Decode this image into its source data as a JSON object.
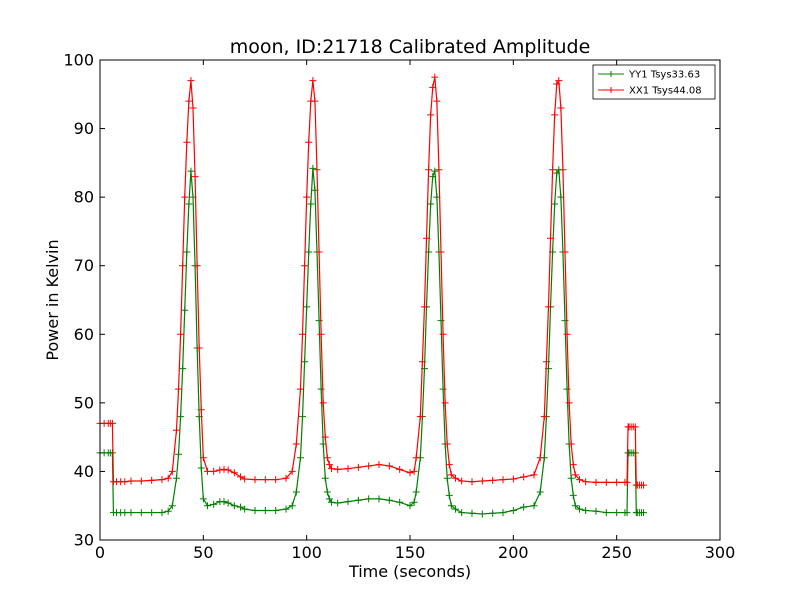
{
  "chart_data": {
    "type": "line",
    "title": "moon, ID:21718 Calibrated Amplitude",
    "xlabel": "Time (seconds)",
    "ylabel": "Power in Kelvin",
    "xlim": [
      0,
      300
    ],
    "ylim": [
      30,
      100
    ],
    "xticks": [
      "0",
      "50",
      "100",
      "150",
      "200",
      "250",
      "300"
    ],
    "yticks": [
      "30",
      "40",
      "50",
      "60",
      "70",
      "80",
      "90",
      "100"
    ],
    "grid": false,
    "legend_position": "top-right",
    "marker": "plus",
    "series": [
      {
        "name": "YY1 Tsys33.63",
        "color": "#008000",
        "x": [
          0,
          2,
          4,
          5,
          6,
          6.5,
          8,
          10,
          12,
          15,
          20,
          25,
          30,
          33,
          35,
          37,
          38,
          39,
          40,
          41,
          42,
          43,
          44,
          45,
          46,
          47,
          48,
          49,
          50,
          52,
          55,
          58,
          60,
          62,
          65,
          68,
          70,
          75,
          80,
          85,
          90,
          93,
          95,
          97,
          98,
          99,
          100,
          101,
          102,
          103,
          104,
          105,
          106,
          107,
          108,
          109,
          110,
          111,
          112,
          115,
          120,
          125,
          130,
          135,
          140,
          145,
          150,
          152,
          153,
          155,
          156,
          157,
          158,
          159,
          160,
          161,
          162,
          163,
          164,
          165,
          166,
          167,
          168,
          169,
          170,
          172,
          175,
          180,
          185,
          190,
          195,
          200,
          205,
          210,
          213,
          215,
          216,
          217,
          218,
          219,
          220,
          221,
          222,
          223,
          224,
          225,
          226,
          227,
          228,
          229,
          230,
          232,
          235,
          240,
          245,
          250,
          254,
          255,
          255.5,
          256,
          257,
          258,
          259,
          259.5,
          260,
          261,
          262,
          263
        ],
        "y": [
          42.7,
          42.7,
          42.7,
          42.7,
          42.7,
          34.0,
          34.0,
          34.0,
          34.0,
          34.0,
          34.0,
          34.0,
          34.0,
          34.2,
          35.0,
          39.0,
          42.5,
          48.0,
          55.0,
          63.5,
          72.0,
          79.0,
          83.8,
          80.0,
          70.0,
          58.0,
          48.0,
          40.5,
          36.0,
          35.0,
          35.2,
          35.6,
          35.6,
          35.4,
          35.0,
          34.8,
          34.5,
          34.3,
          34.3,
          34.3,
          34.5,
          35.0,
          37.0,
          42.0,
          48.0,
          56.0,
          64.0,
          72.0,
          79.0,
          84.2,
          81.0,
          72.0,
          62.0,
          52.0,
          44.0,
          39.0,
          37.0,
          36.0,
          35.5,
          35.4,
          35.6,
          35.8,
          36.0,
          36.0,
          35.8,
          35.5,
          35.0,
          35.5,
          37.0,
          42.0,
          48.0,
          55.0,
          64.0,
          72.0,
          79.0,
          83.0,
          83.8,
          80.0,
          72.0,
          62.0,
          52.0,
          44.0,
          39.0,
          36.5,
          35.0,
          34.5,
          34.0,
          33.9,
          33.8,
          33.9,
          34.0,
          34.3,
          34.8,
          35.0,
          37.0,
          42.0,
          48.0,
          55.0,
          64.0,
          72.0,
          79.0,
          83.5,
          84.0,
          80.0,
          72.0,
          62.0,
          52.0,
          44.0,
          39.0,
          36.5,
          35.0,
          34.5,
          34.3,
          34.2,
          34.0,
          34.0,
          34.0,
          34.0,
          42.7,
          42.7,
          42.7,
          42.7,
          42.7,
          34.0,
          34.0,
          34.0,
          34.0,
          34.0
        ]
      },
      {
        "name": "XX1 Tsys44.08",
        "color": "#ff0000",
        "x": [
          0,
          2,
          4,
          5,
          6,
          6.5,
          8,
          10,
          12,
          15,
          20,
          25,
          30,
          33,
          35,
          37,
          38,
          39,
          40,
          41,
          42,
          43,
          44,
          45,
          46,
          47,
          48,
          49,
          50,
          52,
          55,
          58,
          60,
          62,
          65,
          68,
          70,
          75,
          80,
          85,
          90,
          93,
          95,
          97,
          98,
          99,
          100,
          101,
          102,
          103,
          104,
          105,
          106,
          107,
          108,
          109,
          110,
          111,
          112,
          115,
          120,
          125,
          130,
          135,
          140,
          145,
          150,
          152,
          153,
          155,
          156,
          157,
          158,
          159,
          160,
          161,
          162,
          163,
          164,
          165,
          166,
          167,
          168,
          169,
          170,
          172,
          175,
          180,
          185,
          190,
          195,
          200,
          205,
          210,
          213,
          215,
          216,
          217,
          218,
          219,
          220,
          221,
          222,
          223,
          224,
          225,
          226,
          227,
          228,
          229,
          230,
          232,
          235,
          240,
          245,
          250,
          254,
          255,
          255.5,
          256,
          257,
          258,
          259,
          259.5,
          260,
          261,
          262,
          263
        ],
        "y": [
          47.0,
          47.0,
          47.0,
          47.0,
          47.0,
          38.5,
          38.5,
          38.5,
          38.5,
          38.6,
          38.6,
          38.7,
          38.8,
          39.0,
          40.0,
          46.0,
          52.0,
          60.0,
          70.0,
          80.0,
          88.0,
          94.0,
          97.0,
          93.0,
          83.0,
          70.0,
          58.0,
          49.0,
          42.0,
          40.0,
          40.0,
          40.2,
          40.3,
          40.2,
          39.8,
          39.2,
          38.9,
          38.8,
          38.8,
          38.8,
          39.0,
          40.0,
          44.0,
          52.0,
          60.0,
          70.0,
          80.0,
          88.0,
          94.0,
          97.0,
          94.0,
          84.0,
          72.0,
          60.0,
          50.0,
          45.0,
          42.0,
          41.0,
          40.4,
          40.3,
          40.4,
          40.6,
          40.8,
          41.0,
          40.8,
          40.3,
          39.8,
          40.0,
          42.0,
          48.0,
          56.0,
          64.0,
          74.0,
          84.0,
          92.0,
          96.0,
          97.5,
          94.0,
          84.0,
          72.0,
          60.0,
          50.0,
          44.0,
          41.0,
          39.5,
          39.0,
          38.6,
          38.5,
          38.6,
          38.7,
          38.8,
          38.9,
          39.2,
          39.5,
          42.0,
          48.0,
          56.0,
          64.0,
          74.0,
          84.0,
          92.0,
          96.5,
          97.0,
          93.0,
          84.0,
          72.0,
          60.0,
          50.0,
          44.0,
          41.0,
          39.5,
          38.8,
          38.5,
          38.4,
          38.4,
          38.4,
          38.4,
          38.4,
          46.5,
          46.5,
          46.5,
          46.5,
          46.5,
          38.0,
          38.0,
          38.0,
          38.0,
          38.0
        ]
      }
    ]
  }
}
